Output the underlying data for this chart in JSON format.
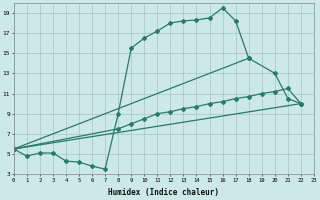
{
  "xlabel": "Humidex (Indice chaleur)",
  "bg_color": "#cce8e8",
  "grid_color": "#aacccc",
  "line_color": "#2a7a6a",
  "xlim": [
    0,
    23
  ],
  "ylim": [
    3,
    20
  ],
  "xticks": [
    0,
    1,
    2,
    3,
    4,
    5,
    6,
    7,
    8,
    9,
    10,
    11,
    12,
    13,
    14,
    15,
    16,
    17,
    18,
    19,
    20,
    21,
    22,
    23
  ],
  "yticks": [
    3,
    5,
    7,
    9,
    11,
    13,
    15,
    17,
    19
  ],
  "line1_x": [
    0,
    1,
    2,
    3,
    4,
    5,
    6,
    7,
    8,
    9,
    10,
    11,
    12,
    13,
    14,
    15,
    16,
    17,
    18
  ],
  "line1_y": [
    5.5,
    4.8,
    5.1,
    5.1,
    4.3,
    4.2,
    3.8,
    3.5,
    9.0,
    15.5,
    16.5,
    17.2,
    18.0,
    18.2,
    18.3,
    18.5,
    19.5,
    18.2,
    14.5
  ],
  "line2_x": [
    0,
    18,
    20,
    21,
    22
  ],
  "line2_y": [
    5.5,
    14.5,
    13.0,
    10.5,
    10.0
  ],
  "line3_x": [
    0,
    22
  ],
  "line3_y": [
    5.5,
    10.0
  ],
  "line4_x": [
    0,
    8,
    9,
    10,
    11,
    12,
    13,
    14,
    15,
    16,
    17,
    18,
    19,
    20,
    21,
    22
  ],
  "line4_y": [
    5.5,
    7.5,
    8.0,
    8.5,
    9.0,
    9.2,
    9.5,
    9.7,
    10.0,
    10.2,
    10.5,
    10.7,
    11.0,
    11.2,
    11.5,
    10.0
  ]
}
